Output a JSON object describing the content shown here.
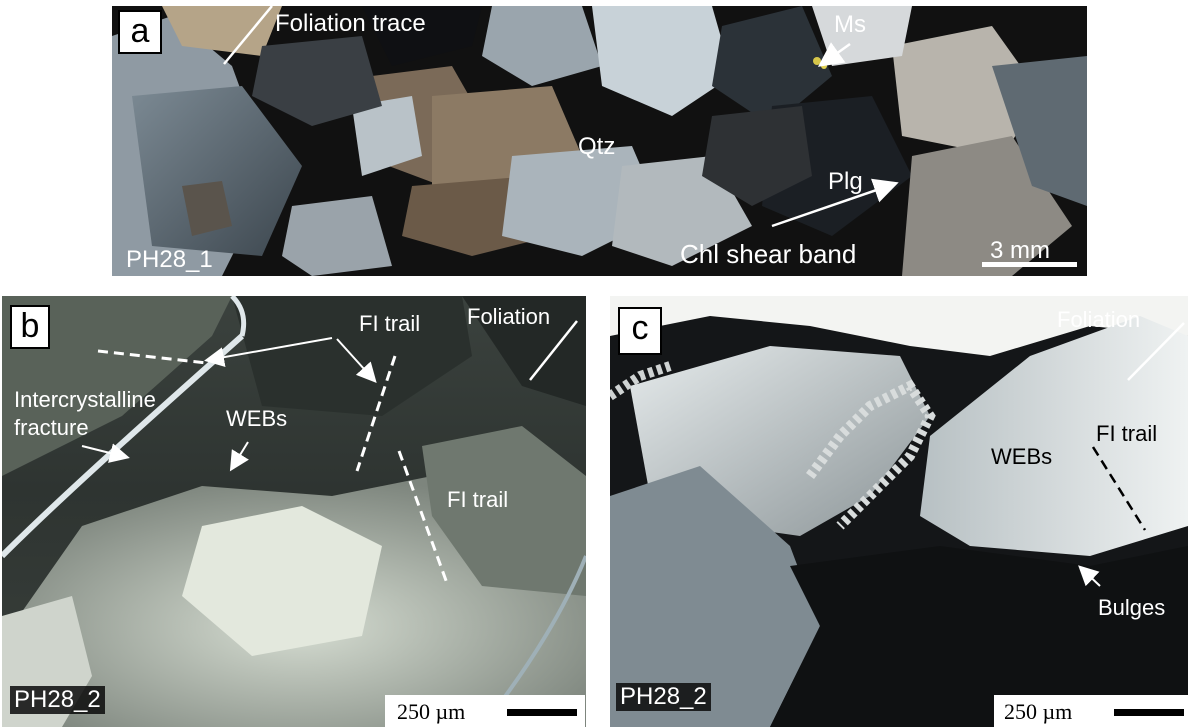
{
  "panels": {
    "a": {
      "letter": "a",
      "labels": {
        "foliation_trace": "Foliation trace",
        "ms": "Ms",
        "qtz": "Qtz",
        "plg": "Plg",
        "chl_shear_band": "Chl shear band"
      },
      "sample": "PH28_1",
      "scale": "3 mm"
    },
    "b": {
      "letter": "b",
      "labels": {
        "fi_trail_top": "FI trail",
        "foliation": "Foliation",
        "intercrystalline_fracture_1": "Intercrystalline",
        "intercrystalline_fracture_2": "fracture",
        "webs": "WEBs",
        "fi_trail_mid": "FI trail"
      },
      "sample": "PH28_2",
      "scale": "250 µm"
    },
    "c": {
      "letter": "c",
      "labels": {
        "foliation": "Foliation",
        "fi_trail": "FI trail",
        "webs": "WEBs",
        "bulges": "Bulges"
      },
      "sample": "PH28_2",
      "scale": "250 µm"
    }
  },
  "colors": {
    "annotation_white": "#ffffff",
    "annotation_black": "#000000"
  }
}
